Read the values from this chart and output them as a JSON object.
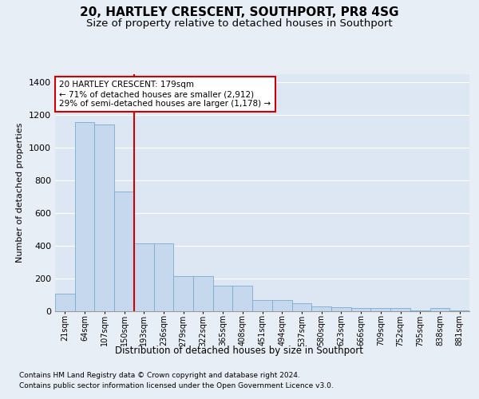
{
  "title": "20, HARTLEY CRESCENT, SOUTHPORT, PR8 4SG",
  "subtitle": "Size of property relative to detached houses in Southport",
  "xlabel": "Distribution of detached houses by size in Southport",
  "ylabel": "Number of detached properties",
  "footnote1": "Contains HM Land Registry data © Crown copyright and database right 2024.",
  "footnote2": "Contains public sector information licensed under the Open Government Licence v3.0.",
  "annotation_line1": "20 HARTLEY CRESCENT: 179sqm",
  "annotation_line2": "← 71% of detached houses are smaller (2,912)",
  "annotation_line3": "29% of semi-detached houses are larger (1,178) →",
  "bin_labels": [
    "21sqm",
    "64sqm",
    "107sqm",
    "150sqm",
    "193sqm",
    "236sqm",
    "279sqm",
    "322sqm",
    "365sqm",
    "408sqm",
    "451sqm",
    "494sqm",
    "537sqm",
    "580sqm",
    "623sqm",
    "666sqm",
    "709sqm",
    "752sqm",
    "795sqm",
    "838sqm",
    "881sqm"
  ],
  "bar_values": [
    108,
    1155,
    1140,
    730,
    415,
    415,
    215,
    215,
    155,
    155,
    70,
    70,
    50,
    30,
    25,
    20,
    20,
    20,
    5,
    20,
    5
  ],
  "bar_color": "#c5d8ee",
  "bar_edge_color": "#7aabcc",
  "red_line_color": "#cc0000",
  "annotation_box_color": "#cc0000",
  "background_color": "#e8eef5",
  "plot_background": "#dce7f3",
  "ylim": [
    0,
    1450
  ],
  "yticks": [
    0,
    200,
    400,
    600,
    800,
    1000,
    1200,
    1400
  ],
  "grid_color": "#ffffff",
  "title_fontsize": 11,
  "subtitle_fontsize": 9.5,
  "ylabel_fontsize": 8,
  "xlabel_fontsize": 8.5,
  "tick_fontsize": 7,
  "annotation_fontsize": 7.5,
  "footnote_fontsize": 6.5
}
